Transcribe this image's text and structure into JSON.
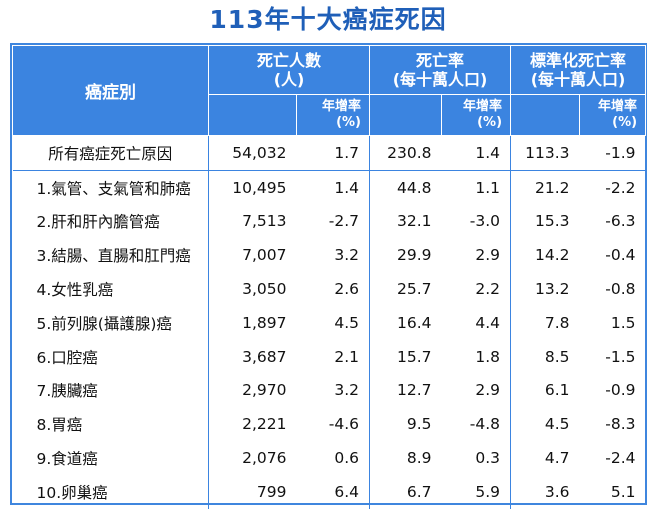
{
  "title": "113年十大癌症死因",
  "header": {
    "category": "癌症別",
    "deaths": "死亡人數",
    "deaths_unit": "(人)",
    "rate": "死亡率",
    "rate_unit": "(每十萬人口)",
    "std_rate": "標準化死亡率",
    "std_rate_unit": "(每十萬人口)",
    "growth": "年增率",
    "growth_unit": "(%)"
  },
  "total": {
    "name": "所有癌症死亡原因",
    "deaths": "54,032",
    "deaths_growth": "1.7",
    "rate": "230.8",
    "rate_growth": "1.4",
    "std_rate": "113.3",
    "std_rate_growth": "-1.9"
  },
  "rows": [
    {
      "name": "1.氣管、支氣管和肺癌",
      "deaths": "10,495",
      "deaths_growth": "1.4",
      "rate": "44.8",
      "rate_growth": "1.1",
      "std_rate": "21.2",
      "std_rate_growth": "-2.2"
    },
    {
      "name": "2.肝和肝內膽管癌",
      "deaths": "7,513",
      "deaths_growth": "-2.7",
      "rate": "32.1",
      "rate_growth": "-3.0",
      "std_rate": "15.3",
      "std_rate_growth": "-6.3"
    },
    {
      "name": "3.結腸、直腸和肛門癌",
      "deaths": "7,007",
      "deaths_growth": "3.2",
      "rate": "29.9",
      "rate_growth": "2.9",
      "std_rate": "14.2",
      "std_rate_growth": "-0.4"
    },
    {
      "name": "4.女性乳癌",
      "deaths": "3,050",
      "deaths_growth": "2.6",
      "rate": "25.7",
      "rate_growth": "2.2",
      "std_rate": "13.2",
      "std_rate_growth": "-0.8"
    },
    {
      "name": "5.前列腺(攝護腺)癌",
      "deaths": "1,897",
      "deaths_growth": "4.5",
      "rate": "16.4",
      "rate_growth": "4.4",
      "std_rate": "7.8",
      "std_rate_growth": "1.5"
    },
    {
      "name": "6.口腔癌",
      "deaths": "3,687",
      "deaths_growth": "2.1",
      "rate": "15.7",
      "rate_growth": "1.8",
      "std_rate": "8.5",
      "std_rate_growth": "-1.5"
    },
    {
      "name": "7.胰臟癌",
      "deaths": "2,970",
      "deaths_growth": "3.2",
      "rate": "12.7",
      "rate_growth": "2.9",
      "std_rate": "6.1",
      "std_rate_growth": "-0.9"
    },
    {
      "name": "8.胃癌",
      "deaths": "2,221",
      "deaths_growth": "-4.6",
      "rate": "9.5",
      "rate_growth": "-4.8",
      "std_rate": "4.5",
      "std_rate_growth": "-8.3"
    },
    {
      "name": "9.食道癌",
      "deaths": "2,076",
      "deaths_growth": "0.6",
      "rate": "8.9",
      "rate_growth": "0.3",
      "std_rate": "4.7",
      "std_rate_growth": "-2.4"
    },
    {
      "name": "10.卵巢癌",
      "deaths": "799",
      "deaths_growth": "6.4",
      "rate": "6.7",
      "rate_growth": "5.9",
      "std_rate": "3.6",
      "std_rate_growth": "5.1"
    }
  ]
}
